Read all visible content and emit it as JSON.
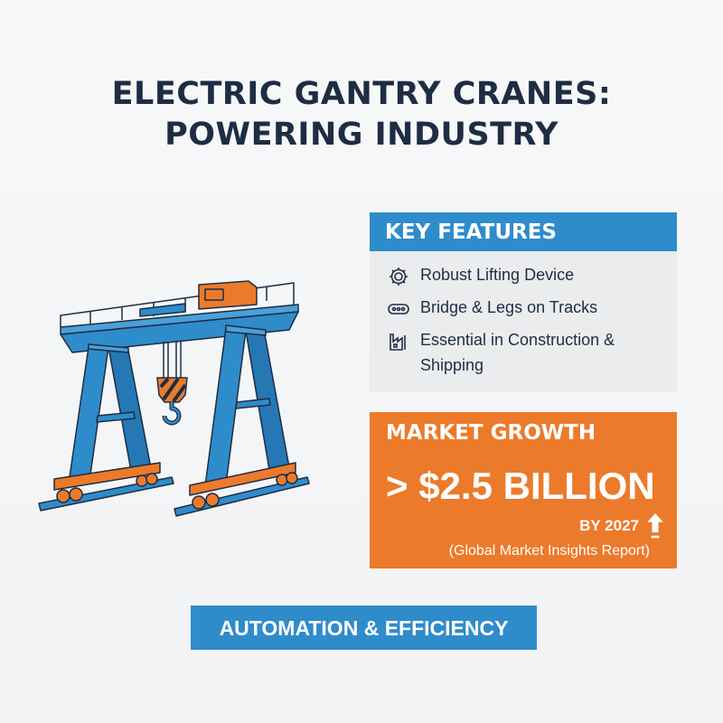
{
  "title": {
    "line1": "ELECTRIC GANTRY CRANES:",
    "line2": "POWERING INDUSTRY"
  },
  "key_features": {
    "heading": "KEY FEATURES",
    "items": [
      {
        "icon": "gear-icon",
        "label": "Robust Lifting Device"
      },
      {
        "icon": "track-icon",
        "label": "Bridge & Legs on Tracks"
      },
      {
        "icon": "factory-icon",
        "label": "Essential in Construction & Shipping"
      }
    ]
  },
  "market_growth": {
    "heading": "MARKET GROWTH",
    "value": "> $2.5 BILLION",
    "year": "BY 2027",
    "source": "(Global Market Insights Report)",
    "icon": "arrow-up-icon"
  },
  "banner": "AUTOMATION & EFFICIENCY",
  "colors": {
    "blue": "#2f8ccb",
    "orange": "#ec7a2b",
    "navy": "#1e2d44",
    "panel": "#ebeced"
  }
}
